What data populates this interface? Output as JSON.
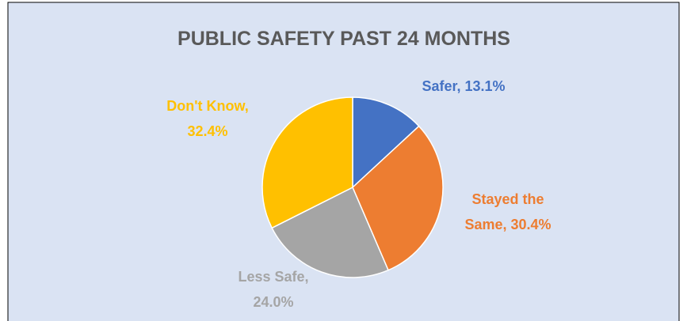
{
  "chart_data": {
    "type": "pie",
    "title": "PUBLIC SAFETY PAST 24 MONTHS",
    "values": [
      13.1,
      30.4,
      24.0,
      32.4
    ],
    "value_labels": [
      [
        "Safer, 13.1%"
      ],
      [
        "Stayed the",
        "Same, 30.4%"
      ],
      [
        "Less Safe,",
        "24.0%"
      ],
      [
        "Don't Know,",
        "32.4%"
      ]
    ],
    "colors": [
      "#4472c4",
      "#ed7d31",
      "#a5a5a5",
      "#ffc000"
    ]
  }
}
